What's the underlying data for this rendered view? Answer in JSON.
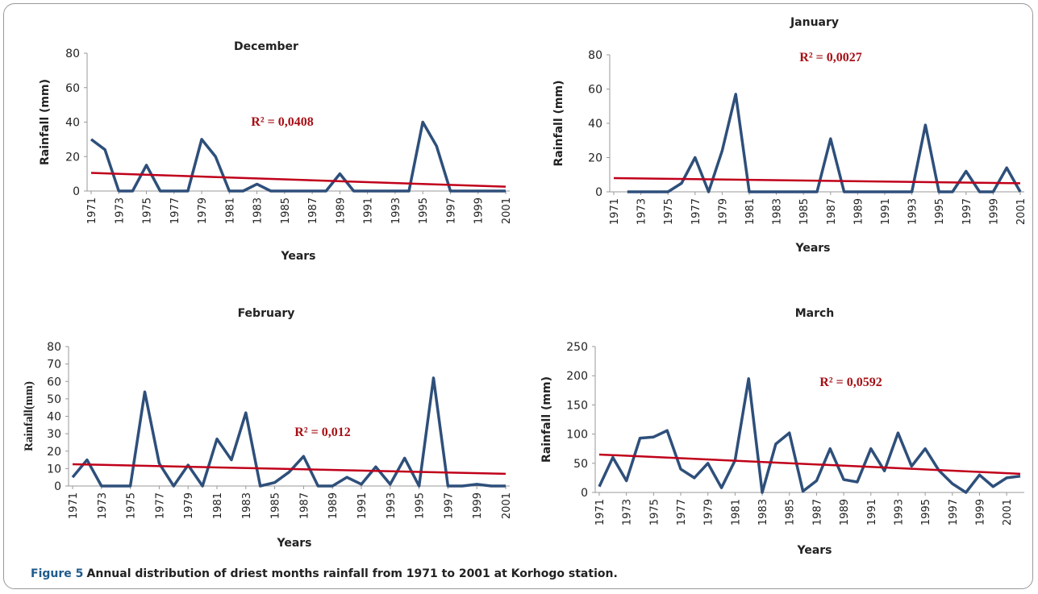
{
  "chart_data": [
    {
      "type": "line",
      "title": "December",
      "xlabel": "Years",
      "ylabel": "Rainfall (mm)",
      "x": [
        1971,
        1972,
        1973,
        1974,
        1975,
        1976,
        1977,
        1978,
        1979,
        1980,
        1981,
        1982,
        1983,
        1984,
        1985,
        1986,
        1987,
        1988,
        1989,
        1990,
        1991,
        1992,
        1993,
        1994,
        1995,
        1996,
        1997,
        1998,
        1999,
        2000,
        2001
      ],
      "series": [
        {
          "color": "#2e4f7a",
          "values": [
            30,
            24,
            0,
            0,
            15,
            0,
            0,
            0,
            30,
            20,
            0,
            0,
            4,
            0,
            0,
            0,
            0,
            0,
            10,
            0,
            0,
            0,
            0,
            0,
            40,
            26,
            0,
            0,
            0,
            0,
            0
          ]
        }
      ],
      "trend": {
        "x": [
          1971,
          2001
        ],
        "values": [
          10.5,
          2.5
        ],
        "color": "#c0001a",
        "annotation": "R² = 0,0408"
      },
      "xlim": [
        1971,
        2001
      ],
      "xticks": [
        1971,
        1973,
        1975,
        1977,
        1979,
        1981,
        1983,
        1985,
        1987,
        1989,
        1991,
        1993,
        1995,
        1997,
        1999,
        2001
      ],
      "ylim": [
        0,
        80
      ],
      "yticks": [
        0,
        20,
        40,
        60,
        80
      ]
    },
    {
      "type": "line",
      "title": "January",
      "xlabel": "Years",
      "ylabel": "Rainfall (mm)",
      "x": [
        1972,
        1973,
        1974,
        1975,
        1976,
        1977,
        1978,
        1979,
        1980,
        1981,
        1982,
        1983,
        1984,
        1985,
        1986,
        1987,
        1988,
        1989,
        1990,
        1991,
        1992,
        1993,
        1994,
        1995,
        1996,
        1997,
        1998,
        1999,
        2000,
        2001
      ],
      "series": [
        {
          "color": "#2e4f7a",
          "values": [
            0,
            0,
            0,
            0,
            5,
            20,
            0,
            24,
            57,
            0,
            0,
            0,
            0,
            0,
            0,
            31,
            0,
            0,
            0,
            0,
            0,
            0,
            39,
            0,
            0,
            12,
            0,
            0,
            14,
            0
          ]
        }
      ],
      "trend": {
        "x": [
          1971,
          2001
        ],
        "values": [
          8,
          5
        ],
        "color": "#c0001a",
        "annotation": "R² = 0,0027"
      },
      "xlim": [
        1971,
        2001
      ],
      "xticks": [
        1971,
        1973,
        1975,
        1977,
        1979,
        1981,
        1983,
        1985,
        1987,
        1989,
        1991,
        1993,
        1995,
        1997,
        1999,
        2001
      ],
      "ylim": [
        0,
        80
      ],
      "yticks": [
        0,
        20,
        40,
        60,
        80
      ]
    },
    {
      "type": "line",
      "title": "February",
      "xlabel": "Years",
      "ylabel": "Rainfall(mm)",
      "x": [
        1971,
        1972,
        1973,
        1974,
        1975,
        1976,
        1977,
        1978,
        1979,
        1980,
        1981,
        1982,
        1983,
        1984,
        1985,
        1986,
        1987,
        1988,
        1989,
        1990,
        1991,
        1992,
        1993,
        1994,
        1995,
        1996,
        1997,
        1998,
        1999,
        2000,
        2001
      ],
      "series": [
        {
          "color": "#2e4f7a",
          "values": [
            5,
            15,
            0,
            0,
            0,
            54,
            13,
            0,
            12,
            0,
            27,
            15,
            42,
            0,
            2,
            8,
            17,
            0,
            0,
            5,
            1,
            11,
            1,
            16,
            0,
            62,
            0,
            0,
            1,
            0,
            0
          ]
        }
      ],
      "trend": {
        "x": [
          1971,
          2001
        ],
        "values": [
          12.5,
          7
        ],
        "color": "#c0001a",
        "annotation": "R² = 0,012"
      },
      "xlim": [
        1971,
        2001
      ],
      "xticks": [
        1971,
        1973,
        1975,
        1977,
        1979,
        1981,
        1983,
        1985,
        1987,
        1989,
        1991,
        1993,
        1995,
        1997,
        1999,
        2001
      ],
      "ylim": [
        0,
        80
      ],
      "yticks": [
        0,
        10,
        20,
        30,
        40,
        50,
        60,
        70,
        80
      ]
    },
    {
      "type": "line",
      "title": "March",
      "xlabel": "Years",
      "ylabel": "Rainfall (mm)",
      "x": [
        1971,
        1972,
        1973,
        1974,
        1975,
        1976,
        1977,
        1978,
        1979,
        1980,
        1981,
        1982,
        1983,
        1984,
        1985,
        1986,
        1987,
        1988,
        1989,
        1990,
        1991,
        1992,
        1993,
        1994,
        1995,
        1996,
        1997,
        1998,
        1999,
        2000,
        2001,
        2002
      ],
      "series": [
        {
          "color": "#2e4f7a",
          "values": [
            10,
            60,
            20,
            93,
            95,
            106,
            40,
            25,
            50,
            8,
            55,
            195,
            0,
            83,
            102,
            2,
            20,
            75,
            22,
            18,
            75,
            37,
            102,
            45,
            75,
            38,
            15,
            0,
            30,
            10,
            25,
            28
          ]
        }
      ],
      "trend": {
        "x": [
          1971,
          2002
        ],
        "values": [
          65,
          32
        ],
        "color": "#c0001a",
        "annotation": "R² = 0,0592"
      },
      "xlim": [
        1971,
        2002
      ],
      "xticks": [
        1971,
        1973,
        1975,
        1977,
        1979,
        1981,
        1983,
        1985,
        1987,
        1989,
        1991,
        1993,
        1995,
        1997,
        1999,
        2001
      ],
      "ylim": [
        0,
        250
      ],
      "yticks": [
        0,
        50,
        100,
        150,
        200,
        250
      ]
    }
  ],
  "caption": {
    "label": "Figure 5",
    "text": "Annual distribution of driest months rainfall from 1971 to 2001 at Korhogo station."
  }
}
